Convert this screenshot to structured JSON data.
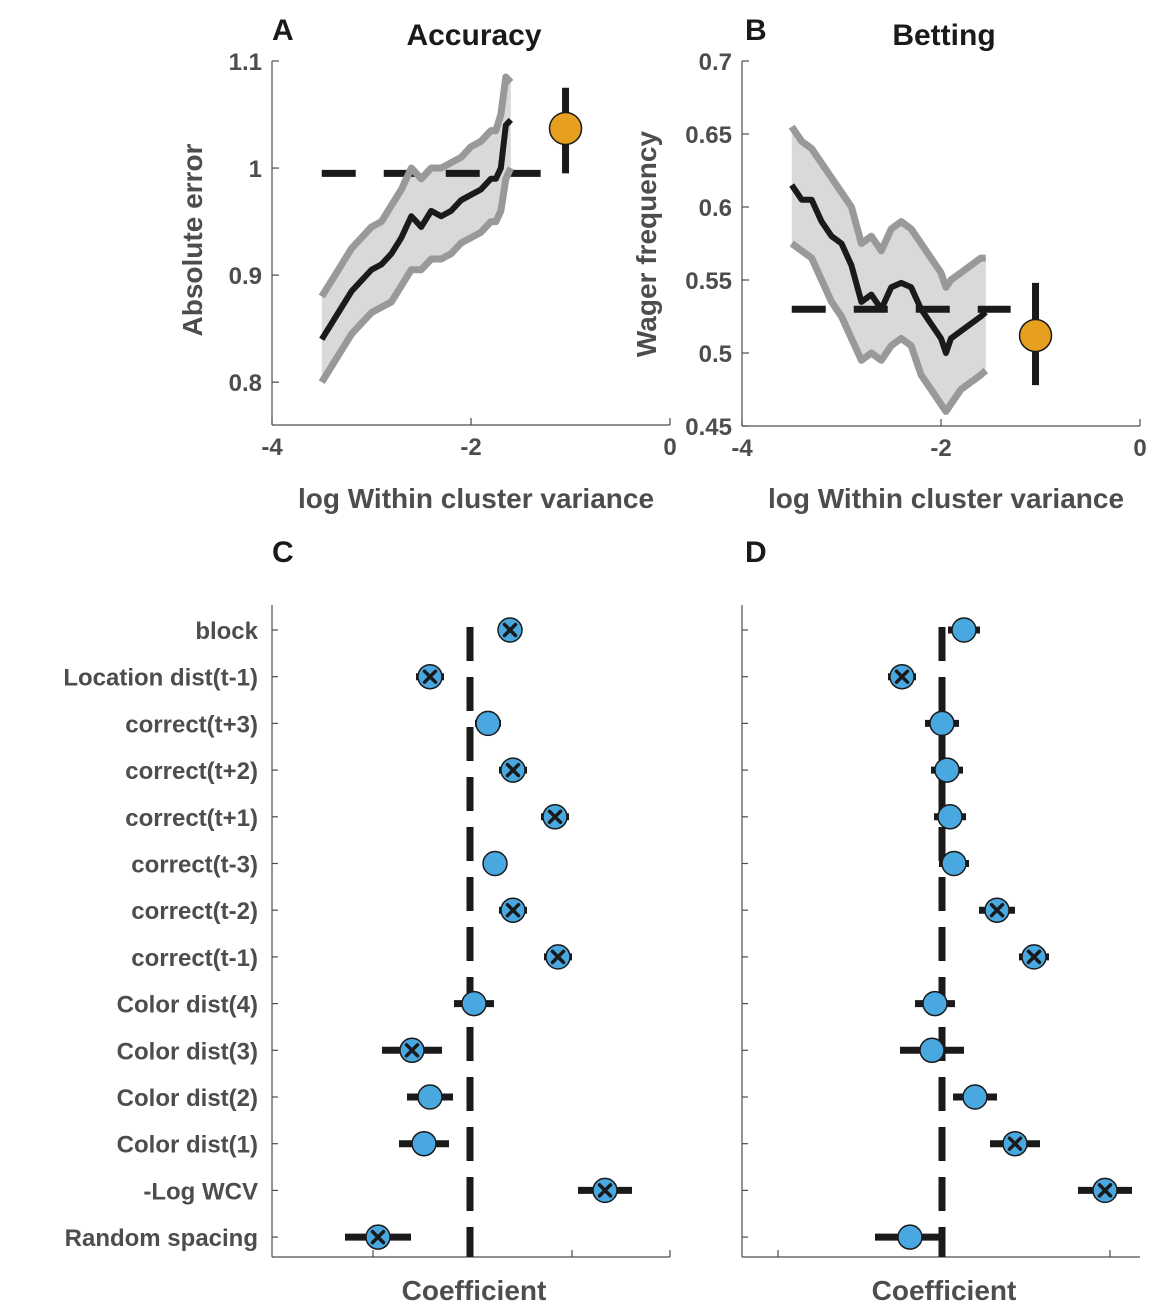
{
  "colors": {
    "mean_line": "#1a1a1a",
    "ci_band": "#d9d9d9",
    "ci_bound": "#999999",
    "reference_dash": "#1a1a1a",
    "marker_fill": "#4aa8e0",
    "marker_edge": "#1a1a1a",
    "orange_marker": "#e69f1f",
    "axis_text": "#4d4d4d"
  },
  "chart_data": [
    {
      "panel": "A",
      "type": "line",
      "title": "Accuracy",
      "xlabel": "log Within cluster variance",
      "ylabel": "Absolute error",
      "xlim": [
        -4,
        0
      ],
      "ylim": [
        0.76,
        1.1
      ],
      "xticks": [
        "-4",
        "-2",
        "0"
      ],
      "yticks": [
        "0.8",
        "0.9",
        "1",
        "1.1"
      ],
      "grid": false,
      "series": [
        {
          "x": [
            -3.5,
            -3.4,
            -3.3,
            -3.2,
            -3.1,
            -3.0,
            -2.9,
            -2.8,
            -2.7,
            -2.6,
            -2.5,
            -2.4,
            -2.3,
            -2.2,
            -2.1,
            -2.0,
            -1.9,
            -1.8,
            -1.75,
            -1.7,
            -1.65,
            -1.6
          ],
          "y": [
            0.84,
            0.855,
            0.87,
            0.885,
            0.895,
            0.905,
            0.91,
            0.92,
            0.935,
            0.955,
            0.945,
            0.96,
            0.955,
            0.96,
            0.97,
            0.975,
            0.98,
            0.99,
            0.99,
            1.0,
            1.04,
            1.045
          ],
          "lower": [
            0.8,
            0.815,
            0.83,
            0.845,
            0.855,
            0.865,
            0.87,
            0.875,
            0.89,
            0.905,
            0.905,
            0.915,
            0.915,
            0.92,
            0.93,
            0.935,
            0.94,
            0.95,
            0.95,
            0.96,
            0.99,
            1.0
          ],
          "upper": [
            0.88,
            0.895,
            0.91,
            0.925,
            0.935,
            0.945,
            0.95,
            0.965,
            0.98,
            1.0,
            0.99,
            1.0,
            1.0,
            1.005,
            1.01,
            1.02,
            1.025,
            1.035,
            1.035,
            1.05,
            1.085,
            1.08
          ]
        }
      ],
      "reference_dashed_y": 0.995,
      "summary_point": {
        "x": -1.05,
        "y": 1.037,
        "y_err": [
          0.995,
          1.075
        ]
      }
    },
    {
      "panel": "B",
      "type": "line",
      "title": "Betting",
      "xlabel": "log Within cluster variance",
      "ylabel": "Wager frequency",
      "xlim": [
        -4,
        0
      ],
      "ylim": [
        0.45,
        0.7
      ],
      "xticks": [
        "-4",
        "-2",
        "0"
      ],
      "yticks": [
        "0.45",
        "0.5",
        "0.55",
        "0.6",
        "0.65",
        "0.7"
      ],
      "grid": false,
      "series": [
        {
          "x": [
            -3.5,
            -3.4,
            -3.3,
            -3.2,
            -3.1,
            -3.0,
            -2.9,
            -2.8,
            -2.7,
            -2.6,
            -2.5,
            -2.4,
            -2.3,
            -2.2,
            -2.1,
            -2.0,
            -1.95,
            -1.9,
            -1.8,
            -1.7,
            -1.6,
            -1.55
          ],
          "y": [
            0.615,
            0.605,
            0.605,
            0.59,
            0.58,
            0.575,
            0.56,
            0.535,
            0.54,
            0.53,
            0.545,
            0.548,
            0.545,
            0.53,
            0.52,
            0.51,
            0.5,
            0.51,
            0.515,
            0.52,
            0.525,
            0.528
          ],
          "lower": [
            0.575,
            0.57,
            0.565,
            0.55,
            0.535,
            0.525,
            0.51,
            0.495,
            0.5,
            0.495,
            0.505,
            0.51,
            0.505,
            0.485,
            0.475,
            0.465,
            0.46,
            0.465,
            0.475,
            0.48,
            0.485,
            0.488
          ],
          "upper": [
            0.655,
            0.645,
            0.64,
            0.63,
            0.62,
            0.61,
            0.6,
            0.575,
            0.58,
            0.57,
            0.585,
            0.59,
            0.585,
            0.575,
            0.565,
            0.555,
            0.545,
            0.55,
            0.555,
            0.56,
            0.565,
            0.565
          ]
        }
      ],
      "reference_dashed_y": 0.53,
      "summary_point": {
        "x": -1.05,
        "y": 0.512,
        "y_err": [
          0.478,
          0.548
        ]
      }
    },
    {
      "panel": "C",
      "type": "scatter",
      "xlabel": "Coefficient",
      "rows": [
        "block",
        "Location dist(t-1)",
        "correct(t+3)",
        "correct(t+2)",
        "correct(t+1)",
        "correct(t-3)",
        "correct(t-2)",
        "correct(t-1)",
        "Color dist(4)",
        "Color dist(3)",
        "Color dist(2)",
        "Color dist(1)",
        "-Log WCV",
        "Random spacing"
      ],
      "values": [
        0.04,
        -0.04,
        0.018,
        0.043,
        0.085,
        0.025,
        0.043,
        0.088,
        0.004,
        -0.058,
        -0.04,
        -0.046,
        0.135,
        -0.092
      ],
      "errors": [
        0.012,
        0.014,
        0.013,
        0.014,
        0.014,
        0.012,
        0.014,
        0.014,
        0.02,
        0.03,
        0.023,
        0.025,
        0.027,
        0.033
      ],
      "significant": [
        true,
        true,
        false,
        true,
        true,
        false,
        true,
        true,
        false,
        true,
        false,
        false,
        true,
        true
      ],
      "reference_dashed_x": 0
    },
    {
      "panel": "D",
      "type": "scatter",
      "xlabel": "Coefficient",
      "rows": [
        "block",
        "Location dist(t-1)",
        "correct(t+3)",
        "correct(t+2)",
        "correct(t+1)",
        "correct(t-3)",
        "correct(t-2)",
        "correct(t-1)",
        "Color dist(4)",
        "Color dist(3)",
        "Color dist(2)",
        "Color dist(1)",
        "-Log WCV",
        "Random spacing"
      ],
      "values": [
        0.022,
        -0.04,
        0.0,
        0.005,
        0.008,
        0.012,
        0.055,
        0.092,
        -0.007,
        -0.01,
        0.033,
        0.073,
        0.163,
        -0.032
      ],
      "errors": [
        0.016,
        0.014,
        0.017,
        0.016,
        0.016,
        0.015,
        0.018,
        0.015,
        0.02,
        0.032,
        0.022,
        0.025,
        0.027,
        0.035
      ],
      "significant": [
        false,
        true,
        false,
        false,
        false,
        false,
        true,
        true,
        false,
        false,
        false,
        true,
        true,
        false
      ],
      "reference_dashed_x": 0
    }
  ]
}
